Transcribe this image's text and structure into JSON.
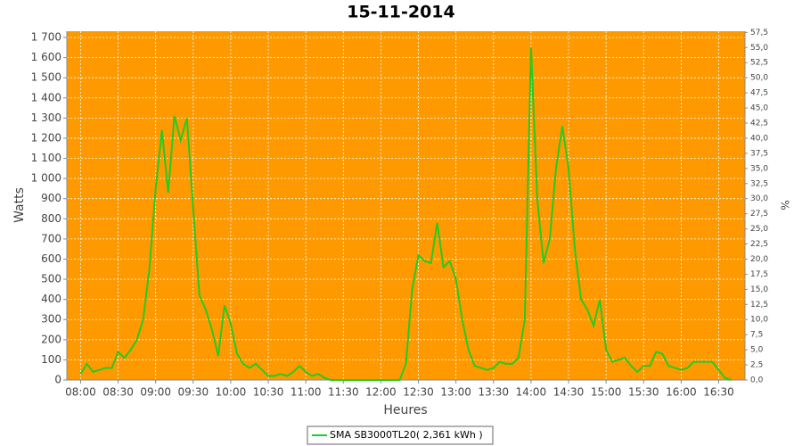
{
  "chart_data": {
    "type": "line",
    "title": "15-11-2014",
    "x_label": "Heures",
    "y_label": "Watts",
    "y2_label": "%",
    "background": "#ff9900",
    "grid": true,
    "legend": "bottom",
    "x": [
      "08:00",
      "08:05",
      "08:10",
      "08:15",
      "08:20",
      "08:25",
      "08:30",
      "08:35",
      "08:40",
      "08:45",
      "08:50",
      "08:55",
      "09:00",
      "09:05",
      "09:10",
      "09:15",
      "09:20",
      "09:25",
      "09:30",
      "09:35",
      "09:40",
      "09:45",
      "09:50",
      "09:55",
      "10:00",
      "10:05",
      "10:10",
      "10:15",
      "10:20",
      "10:25",
      "10:30",
      "10:35",
      "10:40",
      "10:45",
      "10:50",
      "10:55",
      "11:00",
      "11:05",
      "11:10",
      "11:15",
      "11:20",
      "11:25",
      "11:30",
      "11:35",
      "11:40",
      "11:45",
      "11:50",
      "11:55",
      "12:00",
      "12:05",
      "12:10",
      "12:15",
      "12:20",
      "12:25",
      "12:30",
      "12:35",
      "12:40",
      "12:45",
      "12:50",
      "12:55",
      "13:00",
      "13:05",
      "13:10",
      "13:15",
      "13:20",
      "13:25",
      "13:30",
      "13:35",
      "13:40",
      "13:45",
      "13:50",
      "13:55",
      "14:00",
      "14:05",
      "14:10",
      "14:15",
      "14:20",
      "14:25",
      "14:30",
      "14:35",
      "14:40",
      "14:45",
      "14:50",
      "14:55",
      "15:00",
      "15:05",
      "15:10",
      "15:15",
      "15:20",
      "15:25",
      "15:30",
      "15:35",
      "15:40",
      "15:45",
      "15:50",
      "15:55",
      "16:00",
      "16:05",
      "16:10",
      "16:15",
      "16:20",
      "16:25",
      "16:30",
      "16:35",
      "16:40"
    ],
    "series": [
      {
        "name": "SMA SB3000TL20( 2,361 kWh )",
        "color": "#22cc22",
        "values": [
          30,
          80,
          40,
          50,
          60,
          60,
          140,
          110,
          150,
          200,
          300,
          550,
          950,
          1240,
          930,
          1310,
          1190,
          1300,
          850,
          420,
          350,
          250,
          120,
          370,
          280,
          130,
          80,
          60,
          80,
          50,
          20,
          20,
          30,
          20,
          40,
          70,
          40,
          20,
          30,
          10,
          0,
          0,
          0,
          0,
          0,
          0,
          0,
          0,
          0,
          0,
          0,
          0,
          80,
          450,
          620,
          590,
          580,
          780,
          560,
          590,
          500,
          300,
          150,
          70,
          60,
          50,
          60,
          90,
          80,
          80,
          110,
          300,
          1650,
          900,
          580,
          700,
          1050,
          1260,
          1050,
          650,
          400,
          350,
          270,
          400,
          150,
          90,
          100,
          110,
          70,
          40,
          70,
          70,
          140,
          130,
          70,
          60,
          50,
          60,
          90,
          90,
          90,
          90,
          50,
          10,
          0
        ]
      }
    ],
    "xlim": [
      "07:49",
      "16:51"
    ],
    "xticks": [
      "08:00",
      "08:30",
      "09:00",
      "09:30",
      "10:00",
      "10:30",
      "11:00",
      "11:30",
      "12:00",
      "12:30",
      "13:00",
      "13:30",
      "14:00",
      "14:30",
      "15:00",
      "15:30",
      "16:00",
      "16:30"
    ],
    "ylim": [
      0,
      1731
    ],
    "yticks": [
      0,
      100,
      200,
      300,
      400,
      500,
      600,
      700,
      800,
      900,
      {
        "value": 1000,
        "label": "1 000"
      },
      {
        "value": 1100,
        "label": "1 100"
      },
      {
        "value": 1200,
        "label": "1 200"
      },
      {
        "value": 1300,
        "label": "1 300"
      },
      {
        "value": 1400,
        "label": "1 400"
      },
      {
        "value": 1500,
        "label": "1 500"
      },
      {
        "value": 1600,
        "label": "1 600"
      },
      {
        "value": 1700,
        "label": "1 700"
      }
    ],
    "y2lim": [
      0,
      57.7
    ],
    "y2ticks": [
      {
        "value": 0,
        "label": "0,0"
      },
      {
        "value": 2.5,
        "label": "2,5"
      },
      {
        "value": 5,
        "label": "5,0"
      },
      {
        "value": 7.5,
        "label": "7,5"
      },
      {
        "value": 10,
        "label": "10,0"
      },
      {
        "value": 12.5,
        "label": "12,5"
      },
      {
        "value": 15,
        "label": "15,0"
      },
      {
        "value": 17.5,
        "label": "17,5"
      },
      {
        "value": 20,
        "label": "20,0"
      },
      {
        "value": 22.5,
        "label": "22,5"
      },
      {
        "value": 25,
        "label": "25,0"
      },
      {
        "value": 27.5,
        "label": "27,5"
      },
      {
        "value": 30,
        "label": "30,0"
      },
      {
        "value": 32.5,
        "label": "32,5"
      },
      {
        "value": 35,
        "label": "35,0"
      },
      {
        "value": 37.5,
        "label": "37,5"
      },
      {
        "value": 40,
        "label": "40,0"
      },
      {
        "value": 42.5,
        "label": "42,5"
      },
      {
        "value": 45,
        "label": "45,0"
      },
      {
        "value": 47.5,
        "label": "47,5"
      },
      {
        "value": 50,
        "label": "50,0"
      },
      {
        "value": 52.5,
        "label": "52,5"
      },
      {
        "value": 55,
        "label": "55,0"
      },
      {
        "value": 57.5,
        "label": "57,5"
      }
    ]
  }
}
